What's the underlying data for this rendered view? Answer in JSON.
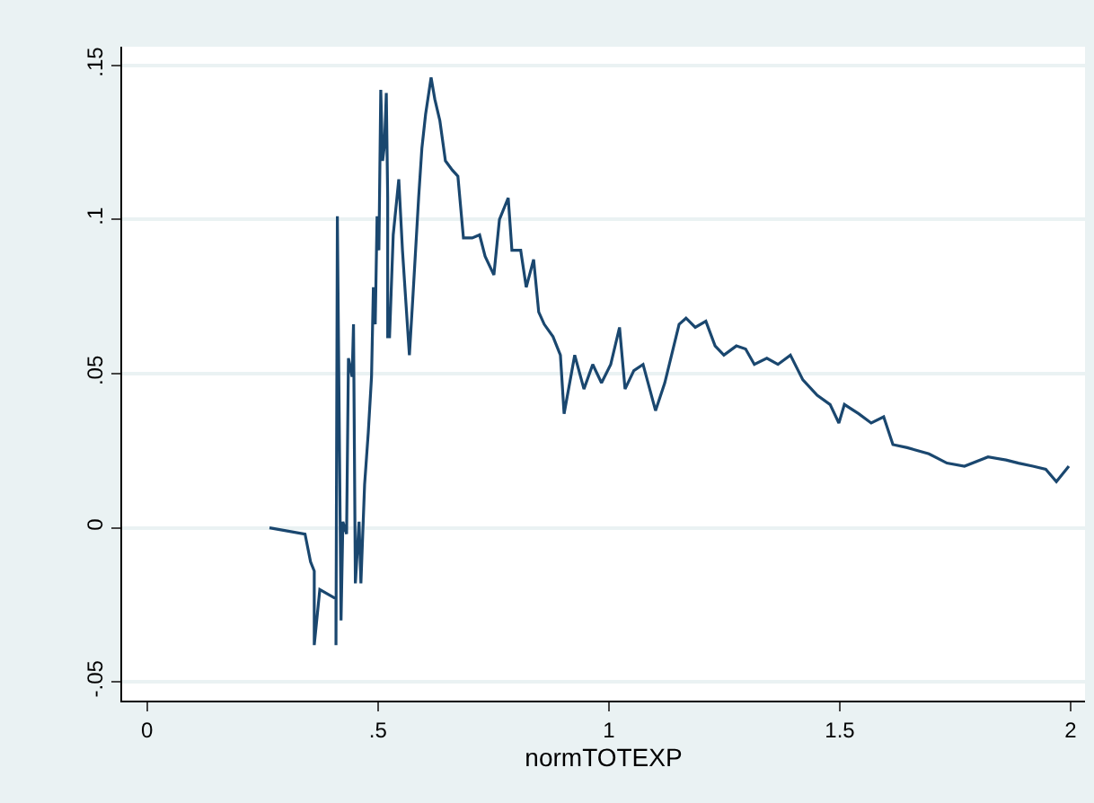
{
  "chart_data": {
    "type": "line",
    "xlabel": "normTOTEXP",
    "x": [
      0.265,
      0.342,
      0.354,
      0.362,
      0.362,
      0.374,
      0.409,
      0.409,
      0.412,
      0.42,
      0.424,
      0.432,
      0.436,
      0.444,
      0.447,
      0.451,
      0.459,
      0.463,
      0.471,
      0.479,
      0.486,
      0.49,
      0.494,
      0.498,
      0.502,
      0.506,
      0.51,
      0.514,
      0.518,
      0.521,
      0.521,
      0.525,
      0.533,
      0.545,
      0.553,
      0.564,
      0.568,
      0.576,
      0.588,
      0.595,
      0.603,
      0.615,
      0.623,
      0.634,
      0.646,
      0.661,
      0.673,
      0.685,
      0.704,
      0.72,
      0.732,
      0.751,
      0.763,
      0.782,
      0.79,
      0.809,
      0.821,
      0.837,
      0.848,
      0.86,
      0.879,
      0.895,
      0.903,
      0.926,
      0.946,
      0.965,
      0.984,
      1.004,
      1.023,
      1.035,
      1.054,
      1.074,
      1.101,
      1.121,
      1.152,
      1.167,
      1.187,
      1.21,
      1.23,
      1.249,
      1.276,
      1.296,
      1.315,
      1.342,
      1.366,
      1.393,
      1.42,
      1.451,
      1.479,
      1.498,
      1.51,
      1.541,
      1.568,
      1.595,
      1.615,
      1.646,
      1.693,
      1.732,
      1.77,
      1.821,
      1.86,
      1.887,
      1.918,
      1.946,
      1.969,
      1.996
    ],
    "series": [
      {
        "color": "#1a476f",
        "values": [
          0,
          -0.002,
          -0.011,
          -0.014,
          -0.038,
          -0.02,
          -0.023,
          -0.038,
          0.101,
          -0.03,
          0.002,
          -0.002,
          0.055,
          0.049,
          0.066,
          -0.018,
          0.002,
          -0.018,
          0.014,
          0.031,
          0.049,
          0.078,
          0.066,
          0.101,
          0.09,
          0.142,
          0.119,
          0.124,
          0.141,
          0.107,
          0.062,
          0.062,
          0.095,
          0.113,
          0.09,
          0.065,
          0.056,
          0.076,
          0.107,
          0.123,
          0.134,
          0.146,
          0.139,
          0.132,
          0.119,
          0.116,
          0.114,
          0.094,
          0.094,
          0.095,
          0.088,
          0.082,
          0.1,
          0.107,
          0.09,
          0.09,
          0.078,
          0.087,
          0.07,
          0.066,
          0.062,
          0.056,
          0.037,
          0.056,
          0.045,
          0.053,
          0.047,
          0.053,
          0.065,
          0.045,
          0.051,
          0.053,
          0.038,
          0.047,
          0.066,
          0.068,
          0.065,
          0.067,
          0.059,
          0.056,
          0.059,
          0.058,
          0.053,
          0.055,
          0.053,
          0.056,
          0.048,
          0.043,
          0.04,
          0.034,
          0.04,
          0.037,
          0.034,
          0.036,
          0.027,
          0.026,
          0.024,
          0.021,
          0.02,
          0.023,
          0.022,
          0.021,
          0.02,
          0.019,
          0.015,
          0.02
        ]
      }
    ],
    "xlim": [
      -0.054,
      2.031
    ],
    "ylim": [
      -0.056,
      0.156
    ],
    "xticks": [
      0,
      {
        "value": 0.5,
        "label": ".5"
      },
      1,
      1.5,
      2
    ],
    "yticks": [
      {
        "value": -0.05,
        "label": "-.05"
      },
      0,
      {
        "value": 0.05,
        "label": ".05"
      },
      {
        "value": 0.1,
        "label": ".1"
      },
      {
        "value": 0.15,
        "label": ".15"
      }
    ],
    "grid": "y",
    "marker": "none",
    "line_style": "solid"
  }
}
